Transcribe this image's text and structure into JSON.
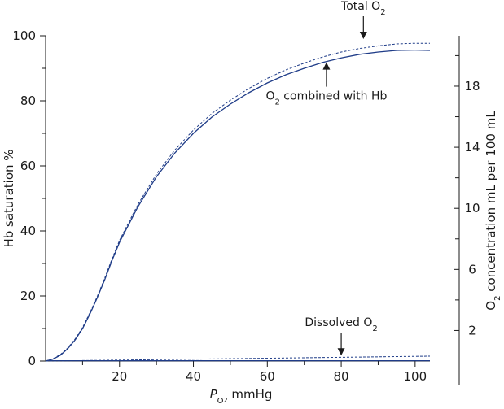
{
  "chart_data": {
    "type": "line",
    "xlabel": {
      "italic": "P",
      "sub": "O",
      "sub2": "2",
      "rest": " mmHg"
    },
    "ylabel_left": "Hb saturation %",
    "ylabel_right": {
      "pre": "O",
      "sub": "2",
      "rest": " concentration mL per 100 mL"
    },
    "xlim": [
      0,
      104
    ],
    "ylim_left": [
      0,
      100
    ],
    "ylim_right": [
      0,
      21.3
    ],
    "x_ticks": [
      20,
      40,
      60,
      80,
      100
    ],
    "x_minor_ticks": [
      10,
      30,
      50,
      70,
      90
    ],
    "y_left_ticks": [
      0,
      20,
      40,
      60,
      80,
      100
    ],
    "y_left_minor_ticks": [
      10,
      30,
      50,
      70,
      90
    ],
    "y_right_ticks": [
      2,
      6,
      10,
      14,
      18
    ],
    "y_right_minor_ticks": [
      4,
      8,
      12,
      16,
      20
    ],
    "series": [
      {
        "name": "O₂ combined with Hb",
        "style": "solid",
        "color": "#1f3c88",
        "x": [
          0,
          2,
          4,
          6,
          8,
          10,
          12,
          14,
          16,
          18,
          20,
          25,
          30,
          35,
          40,
          45,
          50,
          55,
          60,
          65,
          70,
          75,
          80,
          85,
          90,
          95,
          100,
          104
        ],
        "y": [
          0,
          0.6,
          1.8,
          3.8,
          6.5,
          10,
          14.5,
          19.5,
          25,
          31,
          36.5,
          47.5,
          56.7,
          64,
          70,
          75,
          79,
          82.5,
          85.5,
          88,
          90,
          91.8,
          93.2,
          94.3,
          95,
          95.5,
          95.6,
          95.5
        ]
      },
      {
        "name": "Total O₂",
        "style": "dashed",
        "color": "#1f3c88",
        "x": [
          0,
          2,
          4,
          6,
          8,
          10,
          12,
          14,
          16,
          18,
          20,
          25,
          30,
          35,
          40,
          45,
          50,
          55,
          60,
          65,
          70,
          75,
          80,
          85,
          90,
          95,
          100,
          104
        ],
        "y": [
          0,
          0.7,
          2,
          4,
          6.8,
          10.3,
          14.9,
          19.9,
          25.5,
          31.5,
          37.1,
          48.2,
          57.5,
          64.9,
          71,
          76.1,
          80.2,
          83.8,
          86.9,
          89.5,
          91.6,
          93.5,
          95,
          96.1,
          96.9,
          97.5,
          97.7,
          97.7
        ]
      },
      {
        "name": "Dissolved O₂",
        "style": "dashed",
        "color": "#1f3c88",
        "x": [
          0,
          104
        ],
        "y": [
          0,
          1.5
        ]
      },
      {
        "name": "baseline",
        "style": "solid",
        "color": "#1f3c88",
        "x": [
          0,
          104
        ],
        "y": [
          0.1,
          0.1
        ]
      }
    ],
    "annotations": [
      {
        "label_pre": "Total O",
        "label_sub": "2",
        "x": 86,
        "y": 98.5,
        "arrow": "down",
        "label_pos": "above"
      },
      {
        "label_pre": "O",
        "label_sub": "2",
        "label_post": " combined with Hb",
        "x": 76,
        "y": 92.6,
        "arrow": "up",
        "label_pos": "below"
      },
      {
        "label_pre": "Dissolved O",
        "label_sub": "2",
        "x": 80,
        "y": 1.2,
        "arrow": "down",
        "label_pos": "above"
      }
    ]
  }
}
